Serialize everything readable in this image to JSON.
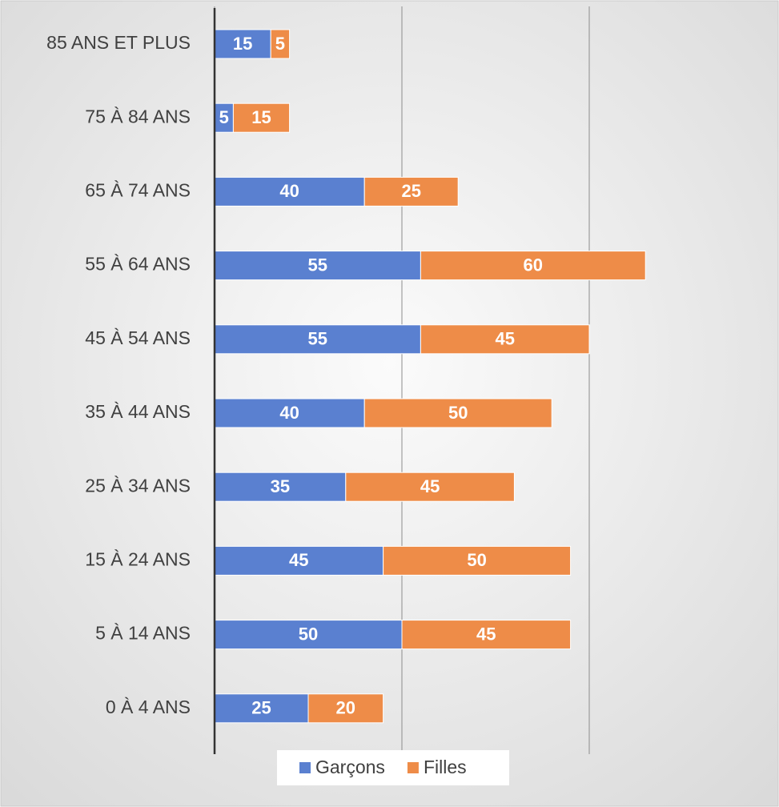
{
  "chart_data": {
    "type": "stacked-barh",
    "categories": [
      "85 ANS ET PLUS",
      "75 À 84 ANS",
      "65 À 74 ANS",
      "55 À 64 ANS",
      "45 À 54 ANS",
      "35 À 44 ANS",
      "25 À 34 ANS",
      "15 À 24 ANS",
      "5 À 14 ANS",
      "0 À 4 ANS"
    ],
    "series": [
      {
        "name": "Garçons",
        "color": "#5a80d0",
        "values": [
          15,
          5,
          40,
          55,
          55,
          40,
          35,
          45,
          50,
          25
        ]
      },
      {
        "name": "Filles",
        "color": "#ee8c48",
        "values": [
          5,
          15,
          25,
          60,
          45,
          50,
          45,
          50,
          45,
          20
        ]
      }
    ],
    "xlim": [
      0,
      150
    ],
    "xticks": [
      0,
      50,
      100
    ],
    "grid": true,
    "legend": "bottom"
  }
}
